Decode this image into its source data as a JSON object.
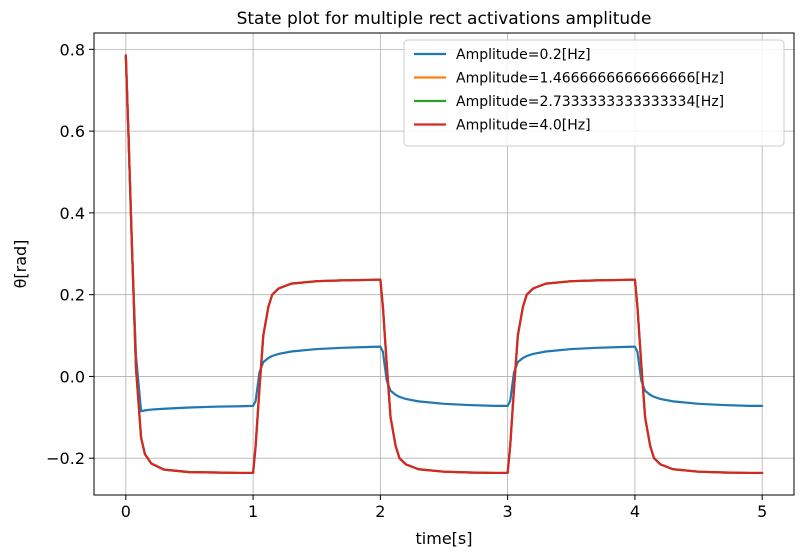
{
  "chart_data": {
    "type": "line",
    "title": "State plot for multiple rect activations amplitude",
    "xlabel": "time[s]",
    "ylabel": "θ[rad]",
    "xlim": [
      -0.25,
      5.25
    ],
    "ylim": [
      -0.29,
      0.84
    ],
    "xticks": [
      0,
      1,
      2,
      3,
      4,
      5
    ],
    "xtick_labels": [
      "0",
      "1",
      "2",
      "3",
      "4",
      "5"
    ],
    "yticks": [
      -0.2,
      0.0,
      0.2,
      0.4,
      0.6,
      0.8
    ],
    "ytick_labels": [
      "−0.2",
      "0.0",
      "0.2",
      "0.4",
      "0.6",
      "0.8"
    ],
    "grid": true,
    "legend_position": "top-right",
    "x": [
      0,
      0.02,
      0.05,
      0.08,
      0.12,
      0.15,
      0.2,
      0.3,
      0.5,
      0.7,
      0.9,
      1.0,
      1.02,
      1.05,
      1.08,
      1.12,
      1.15,
      1.2,
      1.3,
      1.5,
      1.7,
      1.9,
      2.0,
      2.02,
      2.05,
      2.08,
      2.12,
      2.15,
      2.2,
      2.3,
      2.5,
      2.7,
      2.9,
      3.0,
      3.02,
      3.05,
      3.08,
      3.12,
      3.15,
      3.2,
      3.3,
      3.5,
      3.7,
      3.9,
      4.0,
      4.02,
      4.05,
      4.08,
      4.12,
      4.15,
      4.2,
      4.3,
      4.5,
      4.7,
      4.9,
      5.0
    ],
    "series": [
      {
        "name": "Amplitude=0.2[Hz]",
        "color": "#1f77b4",
        "values": [
          0.785,
          0.6,
          0.3,
          0.05,
          -0.085,
          -0.083,
          -0.081,
          -0.079,
          -0.076,
          -0.074,
          -0.073,
          -0.072,
          -0.06,
          0.01,
          0.035,
          0.045,
          0.05,
          0.055,
          0.061,
          0.067,
          0.07,
          0.072,
          0.073,
          0.06,
          -0.01,
          -0.035,
          -0.045,
          -0.05,
          -0.055,
          -0.061,
          -0.067,
          -0.07,
          -0.072,
          -0.072,
          -0.06,
          0.01,
          0.035,
          0.045,
          0.05,
          0.055,
          0.061,
          0.067,
          0.07,
          0.072,
          0.073,
          0.06,
          -0.01,
          -0.035,
          -0.045,
          -0.05,
          -0.055,
          -0.061,
          -0.067,
          -0.07,
          -0.072,
          -0.072
        ]
      },
      {
        "name": "Amplitude=1.4666666666666666[Hz]",
        "color": "#ff7f0e",
        "values": [
          0.785,
          0.6,
          0.3,
          0.02,
          -0.15,
          -0.19,
          -0.213,
          -0.228,
          -0.234,
          -0.235,
          -0.236,
          -0.236,
          -0.17,
          -0.03,
          0.1,
          0.17,
          0.2,
          0.215,
          0.227,
          0.233,
          0.235,
          0.236,
          0.237,
          0.17,
          0.03,
          -0.1,
          -0.17,
          -0.2,
          -0.215,
          -0.227,
          -0.233,
          -0.235,
          -0.236,
          -0.236,
          -0.17,
          -0.03,
          0.1,
          0.17,
          0.2,
          0.215,
          0.227,
          0.233,
          0.235,
          0.236,
          0.237,
          0.17,
          0.03,
          -0.1,
          -0.17,
          -0.2,
          -0.215,
          -0.227,
          -0.233,
          -0.235,
          -0.236,
          -0.236
        ]
      },
      {
        "name": "Amplitude=2.7333333333333334[Hz]",
        "color": "#2ca02c",
        "values": [
          0.785,
          0.6,
          0.3,
          0.02,
          -0.15,
          -0.19,
          -0.213,
          -0.228,
          -0.234,
          -0.235,
          -0.236,
          -0.236,
          -0.17,
          -0.03,
          0.1,
          0.17,
          0.2,
          0.215,
          0.227,
          0.233,
          0.235,
          0.236,
          0.237,
          0.17,
          0.03,
          -0.1,
          -0.17,
          -0.2,
          -0.215,
          -0.227,
          -0.233,
          -0.235,
          -0.236,
          -0.236,
          -0.17,
          -0.03,
          0.1,
          0.17,
          0.2,
          0.215,
          0.227,
          0.233,
          0.235,
          0.236,
          0.237,
          0.17,
          0.03,
          -0.1,
          -0.17,
          -0.2,
          -0.215,
          -0.227,
          -0.233,
          -0.235,
          -0.236,
          -0.236
        ]
      },
      {
        "name": "Amplitude=4.0[Hz]",
        "color": "#d62728",
        "values": [
          0.785,
          0.6,
          0.3,
          0.02,
          -0.15,
          -0.19,
          -0.213,
          -0.228,
          -0.234,
          -0.235,
          -0.236,
          -0.236,
          -0.17,
          -0.03,
          0.1,
          0.17,
          0.2,
          0.215,
          0.227,
          0.233,
          0.235,
          0.236,
          0.237,
          0.17,
          0.03,
          -0.1,
          -0.17,
          -0.2,
          -0.215,
          -0.227,
          -0.233,
          -0.235,
          -0.236,
          -0.236,
          -0.17,
          -0.03,
          0.1,
          0.17,
          0.2,
          0.215,
          0.227,
          0.233,
          0.235,
          0.236,
          0.237,
          0.17,
          0.03,
          -0.1,
          -0.17,
          -0.2,
          -0.215,
          -0.227,
          -0.233,
          -0.235,
          -0.236,
          -0.236
        ]
      }
    ]
  }
}
